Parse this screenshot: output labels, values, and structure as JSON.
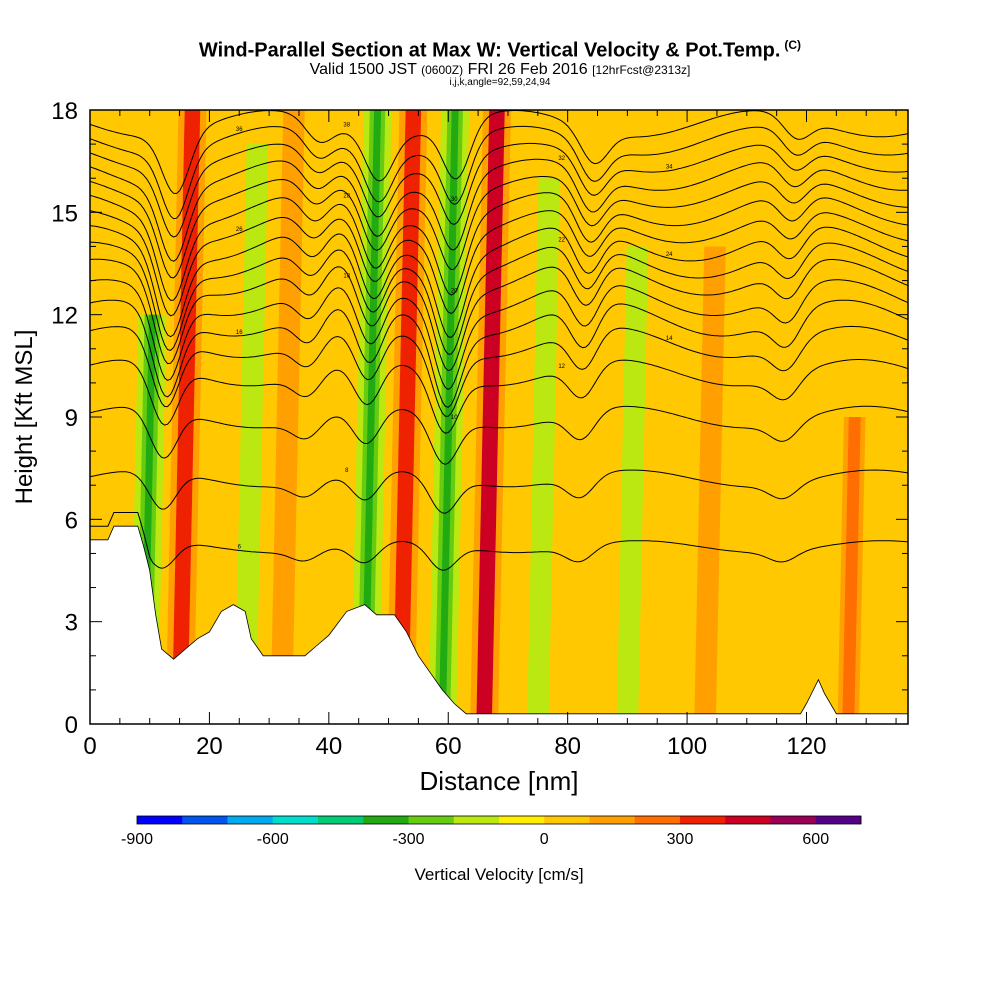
{
  "title": {
    "main": "Wind-Parallel Section at Max W: Vertical Velocity & Pot.Temp.",
    "copyright_mark": "(C)",
    "valid_prefix": "Valid 1500 JST",
    "valid_utc": "(0600Z)",
    "valid_date": "FRI 26 Feb 2016",
    "forecast_info": "[12hrFcst@2313z]",
    "grid_info": "i,j,k,angle=92,59,24,94"
  },
  "chart_data": {
    "type": "heatmap",
    "xlabel": "Distance [nm]",
    "ylabel": "Height [Kft MSL]",
    "xlim": [
      0,
      137
    ],
    "ylim": [
      0,
      18
    ],
    "x_ticks": [
      0,
      20,
      40,
      60,
      80,
      100,
      120
    ],
    "y_ticks": [
      0,
      3,
      6,
      9,
      12,
      15,
      18
    ],
    "colorbar": {
      "label": "Vertical Velocity [cm/s]",
      "bounds": [
        -900,
        -800,
        -700,
        -600,
        -500,
        -400,
        -300,
        -200,
        -100,
        0,
        100,
        200,
        300,
        400,
        500,
        600,
        700
      ],
      "tick_values": [
        -900,
        -600,
        -300,
        0,
        300,
        600
      ],
      "colors": [
        "#0000ff",
        "#0055ee",
        "#00aaee",
        "#00ddcc",
        "#00cc77",
        "#22aa11",
        "#66cc11",
        "#bbe811",
        "#ffee00",
        "#ffc800",
        "#ffa000",
        "#ff6e00",
        "#ee2200",
        "#cc0022",
        "#990055",
        "#550088"
      ]
    },
    "vertical_velocity_bands": [
      {
        "x": 9,
        "sign": "down",
        "value": -300,
        "top": 12
      },
      {
        "x": 15,
        "sign": "up",
        "value": 300,
        "top": 18
      },
      {
        "x": 26,
        "sign": "down",
        "value": -200,
        "top": 17
      },
      {
        "x": 32,
        "sign": "up",
        "value": 100,
        "top": 18
      },
      {
        "x": 46,
        "sign": "down",
        "value": -300,
        "top": 18
      },
      {
        "x": 52,
        "sign": "up",
        "value": 300,
        "top": 18
      },
      {
        "x": 59,
        "sign": "down",
        "value": -300,
        "top": 18
      },
      {
        "x": 66,
        "sign": "up",
        "value": 400,
        "top": 18
      },
      {
        "x": 75,
        "sign": "down",
        "value": -200,
        "top": 16
      },
      {
        "x": 90,
        "sign": "down",
        "value": -200,
        "top": 14
      },
      {
        "x": 103,
        "sign": "up",
        "value": 100,
        "top": 14
      },
      {
        "x": 127,
        "sign": "up",
        "value": 200,
        "top": 9
      }
    ],
    "terrain": [
      {
        "x": 0,
        "h": 5.4
      },
      {
        "x": 3,
        "h": 5.4
      },
      {
        "x": 4,
        "h": 5.8
      },
      {
        "x": 8,
        "h": 5.8
      },
      {
        "x": 9,
        "h": 5.2
      },
      {
        "x": 10,
        "h": 4.5
      },
      {
        "x": 11,
        "h": 3.2
      },
      {
        "x": 12,
        "h": 2.2
      },
      {
        "x": 14,
        "h": 1.9
      },
      {
        "x": 16,
        "h": 2.2
      },
      {
        "x": 18,
        "h": 2.5
      },
      {
        "x": 20,
        "h": 2.7
      },
      {
        "x": 22,
        "h": 3.3
      },
      {
        "x": 24,
        "h": 3.5
      },
      {
        "x": 26,
        "h": 3.3
      },
      {
        "x": 27,
        "h": 2.5
      },
      {
        "x": 29,
        "h": 2.0
      },
      {
        "x": 36,
        "h": 2.0
      },
      {
        "x": 38,
        "h": 2.3
      },
      {
        "x": 40,
        "h": 2.6
      },
      {
        "x": 43,
        "h": 3.3
      },
      {
        "x": 46,
        "h": 3.5
      },
      {
        "x": 48,
        "h": 3.2
      },
      {
        "x": 51,
        "h": 3.2
      },
      {
        "x": 53,
        "h": 2.7
      },
      {
        "x": 55,
        "h": 2.0
      },
      {
        "x": 57,
        "h": 1.5
      },
      {
        "x": 59,
        "h": 1.0
      },
      {
        "x": 61,
        "h": 0.6
      },
      {
        "x": 63,
        "h": 0.3
      },
      {
        "x": 70,
        "h": 0.3
      },
      {
        "x": 119,
        "h": 0.3
      },
      {
        "x": 120,
        "h": 0.6
      },
      {
        "x": 122,
        "h": 1.3
      },
      {
        "x": 123,
        "h": 0.9
      },
      {
        "x": 125,
        "h": 0.3
      },
      {
        "x": 137,
        "h": 0.3
      }
    ],
    "isentropes": [
      {
        "label": "6",
        "base": 5.2,
        "amp": 0.5
      },
      {
        "label": "8",
        "base": 7.2,
        "amp": 0.7
      },
      {
        "label": "10",
        "base": 9.0,
        "amp": 0.9
      },
      {
        "label": "12",
        "base": 10.3,
        "amp": 1.1
      },
      {
        "label": "14",
        "base": 11.2,
        "amp": 1.3
      },
      {
        "label": "16",
        "base": 11.9,
        "amp": 1.5
      },
      {
        "label": "18",
        "base": 12.5,
        "amp": 1.5
      },
      {
        "label": "20",
        "base": 13.1,
        "amp": 1.5
      },
      {
        "label": "22",
        "base": 13.6,
        "amp": 1.5
      },
      {
        "label": "24",
        "base": 14.1,
        "amp": 1.5
      },
      {
        "label": "26",
        "base": 14.6,
        "amp": 1.4
      },
      {
        "label": "28",
        "base": 15.1,
        "amp": 1.4
      },
      {
        "label": "30",
        "base": 15.6,
        "amp": 1.3
      },
      {
        "label": "32",
        "base": 16.1,
        "amp": 1.3
      },
      {
        "label": "34",
        "base": 16.6,
        "amp": 1.2
      },
      {
        "label": "36",
        "base": 17.1,
        "amp": 1.2
      },
      {
        "label": "38",
        "base": 17.6,
        "amp": 1.1
      }
    ]
  }
}
